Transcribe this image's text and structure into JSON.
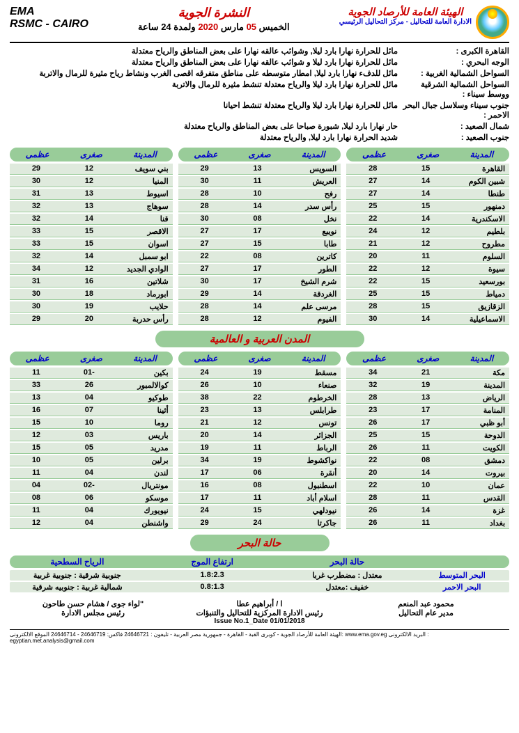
{
  "header": {
    "ema": "EMA",
    "rsmc": "RSMC - CAIRO",
    "bulletin_title": "النشرة الجوية",
    "day": "الخميس",
    "date_num": "05",
    "month": "مارس",
    "year": "2020",
    "duration": "ولمدة 24 ساعة",
    "org": "الهيئة العامة للأرصاد الجوية",
    "org_sub": "الادارة العامة للتحاليل - مركز التحاليل الرئيسي"
  },
  "forecast": [
    {
      "region": "القاهرة الكبرى :",
      "text": "مائل للحرارة   نهارا بارد ليلا, وشوائب عالقه نهارا على  بعض المناطق والرياح معتدلة"
    },
    {
      "region": "الوجه البحري :",
      "text": "مائل للحرارة   نهارا بارد ليلا و  شوائب عالقه نهارا على  بعض المناطق والرياح معتدلة"
    },
    {
      "region": "السواحل الشمالية الغربية :",
      "text": "مائل للدفء   نهارا بارد ليلا, امطار متوسطه على مناطق متفرقه اقصى الغرب ونشاط رياح مثيرة للرمال والاتربة"
    },
    {
      "region": "السواحل الشمالية الشرقية ووسط سيناء :",
      "text": "مائل للحرارة   نهارا بارد ليلا والرياح معتدلة  تنشط مثيرة للرمال والاتربة"
    },
    {
      "region": "جنوب سيناء وسلاسل جبال البحر الاحمر :",
      "text": "مائل للحرارة   نهارا بارد ليلا والرياح معتدلة تنشط احيانا"
    },
    {
      "region": "شمال الصعيد :",
      "text": "حار نهارا بارد ليلا, شبورة صباحا على  بعض المناطق والرياح معتدلة"
    },
    {
      "region": "جنوب الصعيد :",
      "text": "شديد الحرارة   نهارا بارد ليلا,  والرياح معتدلة"
    }
  ],
  "table_headers": {
    "city": "المدينة",
    "min": "صغرى",
    "max": "عظمى"
  },
  "egypt_col1": [
    {
      "c": "القاهرة",
      "l": "15",
      "h": "28"
    },
    {
      "c": "شبين الكوم",
      "l": "14",
      "h": "27"
    },
    {
      "c": "طنطا",
      "l": "14",
      "h": "27"
    },
    {
      "c": "دمنهور",
      "l": "15",
      "h": "25"
    },
    {
      "c": "الاسكندرية",
      "l": "14",
      "h": "22"
    },
    {
      "c": "بلطيم",
      "l": "12",
      "h": "24"
    },
    {
      "c": "مطروح",
      "l": "12",
      "h": "21"
    },
    {
      "c": "السلوم",
      "l": "11",
      "h": "20"
    },
    {
      "c": "سيوة",
      "l": "12",
      "h": "22"
    },
    {
      "c": "بورسعيد",
      "l": "15",
      "h": "22"
    },
    {
      "c": "دمياط",
      "l": "15",
      "h": "25"
    },
    {
      "c": "الزقازيق",
      "l": "15",
      "h": "28"
    },
    {
      "c": "الاسماعيلية",
      "l": "14",
      "h": "30"
    }
  ],
  "egypt_col2": [
    {
      "c": "السويس",
      "l": "13",
      "h": "29"
    },
    {
      "c": "العريش",
      "l": "11",
      "h": "30"
    },
    {
      "c": "رفح",
      "l": "10",
      "h": "28"
    },
    {
      "c": "رأس سدر",
      "l": "14",
      "h": "28"
    },
    {
      "c": "نخل",
      "l": "08",
      "h": "30"
    },
    {
      "c": "نويبع",
      "l": "17",
      "h": "27"
    },
    {
      "c": "طابا",
      "l": "15",
      "h": "27"
    },
    {
      "c": "كاترين",
      "l": "08",
      "h": "22"
    },
    {
      "c": "الطور",
      "l": "17",
      "h": "27"
    },
    {
      "c": "شرم الشيخ",
      "l": "17",
      "h": "30"
    },
    {
      "c": "الغردقة",
      "l": "14",
      "h": "29"
    },
    {
      "c": "مرسى علم",
      "l": "14",
      "h": "28"
    },
    {
      "c": "الفيوم",
      "l": "12",
      "h": "28"
    }
  ],
  "egypt_col3": [
    {
      "c": "بني سويف",
      "l": "12",
      "h": "29"
    },
    {
      "c": "المنيا",
      "l": "12",
      "h": "30"
    },
    {
      "c": "اسيوط",
      "l": "13",
      "h": "31"
    },
    {
      "c": "سوهاج",
      "l": "13",
      "h": "32"
    },
    {
      "c": "قنا",
      "l": "14",
      "h": "32"
    },
    {
      "c": "الاقصر",
      "l": "15",
      "h": "33"
    },
    {
      "c": "اسوان",
      "l": "15",
      "h": "33"
    },
    {
      "c": "ابو سمبل",
      "l": "14",
      "h": "32"
    },
    {
      "c": "الوادي الجديد",
      "l": "12",
      "h": "34"
    },
    {
      "c": "شلاتين",
      "l": "16",
      "h": "31"
    },
    {
      "c": "ابورماد",
      "l": "18",
      "h": "30"
    },
    {
      "c": "حلايب",
      "l": "19",
      "h": "30"
    },
    {
      "c": "رأس حدربة",
      "l": "20",
      "h": "29"
    }
  ],
  "section_world": "المدن العربية و العالمية",
  "world_col1": [
    {
      "c": "مكة",
      "l": "21",
      "h": "34"
    },
    {
      "c": "المدينة",
      "l": "19",
      "h": "32"
    },
    {
      "c": "الرياض",
      "l": "13",
      "h": "28"
    },
    {
      "c": "المنامة",
      "l": "17",
      "h": "23"
    },
    {
      "c": "أبو ظبي",
      "l": "17",
      "h": "26"
    },
    {
      "c": "الدوحة",
      "l": "15",
      "h": "25"
    },
    {
      "c": "الكويت",
      "l": "11",
      "h": "26"
    },
    {
      "c": "دمشق",
      "l": "08",
      "h": "22"
    },
    {
      "c": "بيروت",
      "l": "14",
      "h": "20"
    },
    {
      "c": "عمان",
      "l": "10",
      "h": "22"
    },
    {
      "c": "القدس",
      "l": "11",
      "h": "28"
    },
    {
      "c": "غزة",
      "l": "14",
      "h": "26"
    },
    {
      "c": "بغداد",
      "l": "11",
      "h": "26"
    }
  ],
  "world_col2": [
    {
      "c": "مسقط",
      "l": "19",
      "h": "24"
    },
    {
      "c": "صنعاء",
      "l": "10",
      "h": "26"
    },
    {
      "c": "الخرطوم",
      "l": "22",
      "h": "38"
    },
    {
      "c": "طرابلس",
      "l": "13",
      "h": "23"
    },
    {
      "c": "تونس",
      "l": "12",
      "h": "21"
    },
    {
      "c": "الجزائر",
      "l": "14",
      "h": "20"
    },
    {
      "c": "الرباط",
      "l": "11",
      "h": "19"
    },
    {
      "c": "نواكشوط",
      "l": "19",
      "h": "34"
    },
    {
      "c": "أنقرة",
      "l": "06",
      "h": "17"
    },
    {
      "c": "اسطنبول",
      "l": "08",
      "h": "16"
    },
    {
      "c": "اسلام أباد",
      "l": "11",
      "h": "17"
    },
    {
      "c": "نيودلهي",
      "l": "15",
      "h": "24"
    },
    {
      "c": "جاكرتا",
      "l": "24",
      "h": "29"
    }
  ],
  "world_col3": [
    {
      "c": "بكين",
      "l": "-01",
      "h": "11"
    },
    {
      "c": "كوالالمبور",
      "l": "26",
      "h": "33"
    },
    {
      "c": "طوكيو",
      "l": "04",
      "h": "13"
    },
    {
      "c": "أثينا",
      "l": "07",
      "h": "16"
    },
    {
      "c": "روما",
      "l": "10",
      "h": "15"
    },
    {
      "c": "باريس",
      "l": "03",
      "h": "12"
    },
    {
      "c": "مدريد",
      "l": "05",
      "h": "15"
    },
    {
      "c": "برلين",
      "l": "05",
      "h": "10"
    },
    {
      "c": "لندن",
      "l": "04",
      "h": "11"
    },
    {
      "c": "مونتريال",
      "l": "-02",
      "h": "04"
    },
    {
      "c": "موسكو",
      "l": "06",
      "h": "08"
    },
    {
      "c": "نيويورك",
      "l": "04",
      "h": "11"
    },
    {
      "c": "واشنطن",
      "l": "04",
      "h": "12"
    }
  ],
  "section_sea": "حالة البحر",
  "sea_headers": [
    "",
    "حالة البحر",
    "ارتفاع الموج",
    "الرياح السطحية"
  ],
  "sea_rows": [
    {
      "name": "البحر المتوسط",
      "state": "معتدل : مضطرب غربا",
      "wave": "1.8:2.3",
      "wind": "جنوبية شرقية : جنوبية غربية"
    },
    {
      "name": "البحر الاحمر",
      "state": "خفيف :معتدل",
      "wave": "0.8:1.3",
      "wind": "شمالية غربية : جنوبيه شرقية"
    }
  ],
  "signatures": {
    "right_name": "محمود عبد المنعم",
    "right_title": "مدير عام  التحاليل",
    "center_name": "ا / أبراهيم عطا",
    "center_title": "رئيس الادارة المركزية للتحاليل والتنبؤات",
    "center_issue": "Issue No.1_Date 01/01/2018",
    "left_name": "\"لواء جوى / هشام حسن طاحون",
    "left_title": "رئيس مجلس الادارة"
  },
  "footer_contact": "الهيئة العامة للأرصاد الجوية - كوبرى القبة - القاهرة - جمهورية مصر العربية - تليفون : 24646721  فاكس: 24646719  -  24646714 الموقع الالكترونى: www.ema.gov.eg  البريد الالكترونى : egyptian.met.analysis@gmail.com"
}
